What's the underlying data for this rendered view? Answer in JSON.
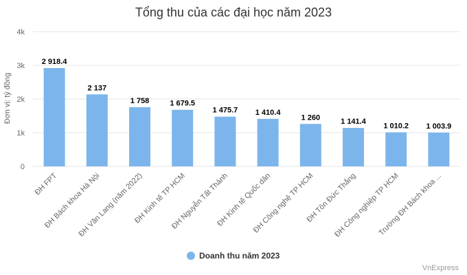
{
  "chart_data": {
    "type": "bar",
    "title": "Tổng thu của các đại học năm 2023",
    "ylabel": "Đơn vị: tỷ đồng",
    "xlabel": "",
    "ylim": [
      0,
      4000
    ],
    "yticks": [
      {
        "value": 0,
        "label": "0"
      },
      {
        "value": 1000,
        "label": "1k"
      },
      {
        "value": 2000,
        "label": "2k"
      },
      {
        "value": 3000,
        "label": "3k"
      },
      {
        "value": 4000,
        "label": "4k"
      }
    ],
    "grid": true,
    "legend_position": "bottom-center",
    "categories": [
      "ĐH FPT",
      "ĐH Bách khoa Hà Nội",
      "ĐH Văn Lang (năm 2022)",
      "ĐH Kinh tế TP HCM",
      "ĐH Nguyễn Tất Thành",
      "ĐH Kinh tế Quốc dân",
      "ĐH Công nghệ TP HCM",
      "ĐH Tôn Đức Thắng",
      "ĐH Công nghiệp TP HCM",
      "Trường ĐH Bách khoa ..."
    ],
    "series": [
      {
        "name": "Doanh thu năm 2023",
        "color": "#7cb5ec",
        "values": [
          2918.4,
          2137,
          1758,
          1679.5,
          1475.7,
          1410.4,
          1260,
          1141.4,
          1010.2,
          1003.9
        ],
        "labels": [
          "2 918.4",
          "2 137",
          "1 758",
          "1 679.5",
          "1 475.7",
          "1 410.4",
          "1 260",
          "1 141.4",
          "1 010.2",
          "1 003.9"
        ]
      }
    ]
  },
  "credit": "VnExpress"
}
